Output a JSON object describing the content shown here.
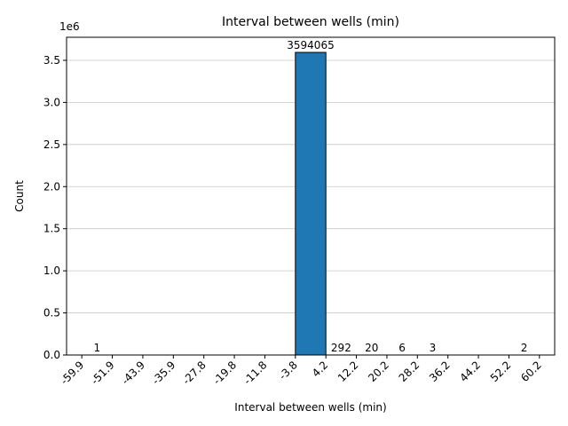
{
  "chart_data": {
    "type": "bar",
    "title": "Interval between wells (min)",
    "xlabel": "Interval between wells (min)",
    "ylabel": "Count",
    "y_multiplier_label": "1e6",
    "bin_edges": [
      "-59.9",
      "-51.9",
      "-43.9",
      "-35.9",
      "-27.8",
      "-19.8",
      "-11.8",
      "-3.8",
      "4.2",
      "12.2",
      "20.2",
      "28.2",
      "36.2",
      "44.2",
      "52.2",
      "60.2"
    ],
    "values": [
      1,
      0,
      0,
      0,
      0,
      0,
      0,
      3594065,
      292,
      20,
      6,
      3,
      0,
      0,
      2
    ],
    "data_labels": [
      "1",
      "",
      "",
      "",
      "",
      "",
      "",
      "3594065",
      "292",
      "20",
      "6",
      "3",
      "",
      "",
      "2"
    ],
    "y_ticks": [
      0.0,
      0.5,
      1.0,
      1.5,
      2.0,
      2.5,
      3.0,
      3.5
    ],
    "y_tick_labels": [
      "0.0",
      "0.5",
      "1.0",
      "1.5",
      "2.0",
      "2.5",
      "3.0",
      "3.5"
    ],
    "ylim": [
      0,
      3773768
    ],
    "grid": "y",
    "bar_color": "#1f77b4",
    "edge_color": "#000000"
  }
}
